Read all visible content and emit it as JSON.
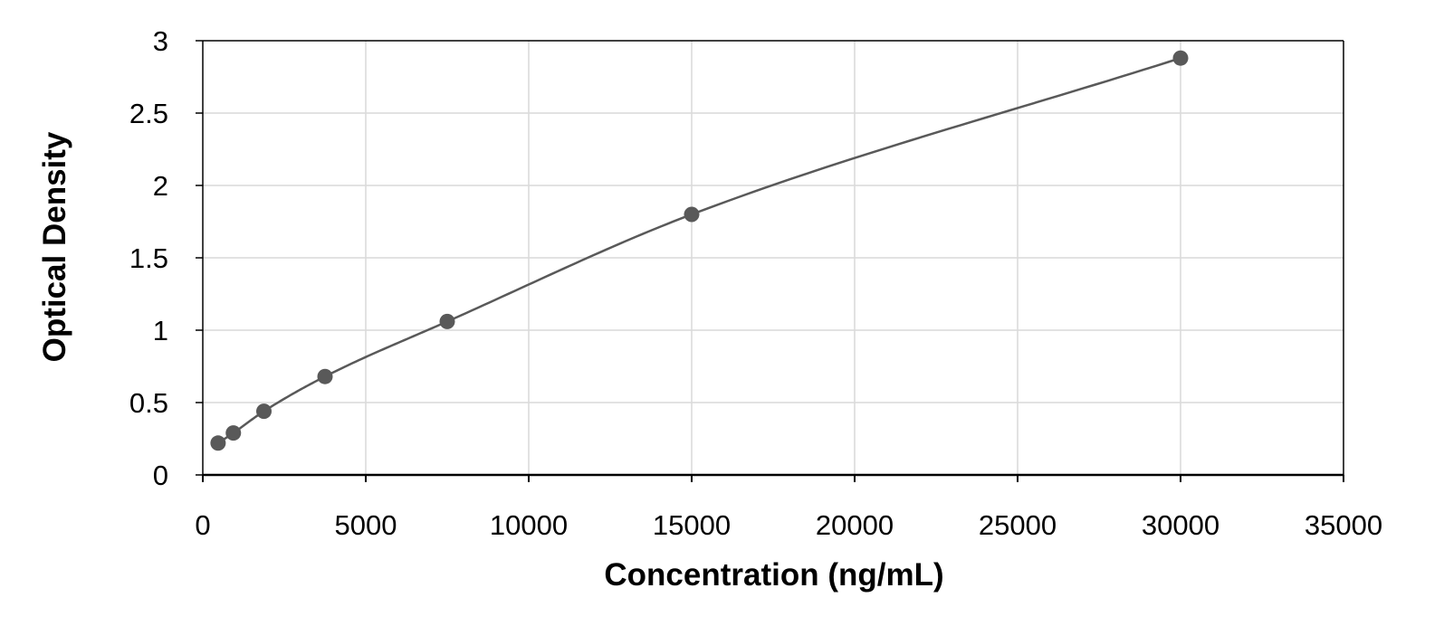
{
  "chart_data": {
    "type": "scatter",
    "title": "",
    "xlabel": "Concentration (ng/mL)",
    "ylabel": "Optical Density",
    "xlim": [
      0,
      35000
    ],
    "ylim": [
      0,
      3
    ],
    "xticks": [
      0,
      5000,
      10000,
      15000,
      20000,
      25000,
      30000,
      35000
    ],
    "yticks": [
      0,
      0.5,
      1,
      1.5,
      2,
      2.5,
      3
    ],
    "grid": true,
    "legend": "none",
    "colors": {
      "point": "#595959",
      "curve": "#595959",
      "grid": "#d9d9d9",
      "axis": "#000000"
    },
    "series": [
      {
        "points": [
          {
            "x": 469,
            "y": 0.22
          },
          {
            "x": 938,
            "y": 0.29
          },
          {
            "x": 1875,
            "y": 0.44
          },
          {
            "x": 3750,
            "y": 0.68
          },
          {
            "x": 7500,
            "y": 1.06
          },
          {
            "x": 15000,
            "y": 1.8
          },
          {
            "x": 30000,
            "y": 2.88
          }
        ],
        "trendline": true
      }
    ]
  }
}
